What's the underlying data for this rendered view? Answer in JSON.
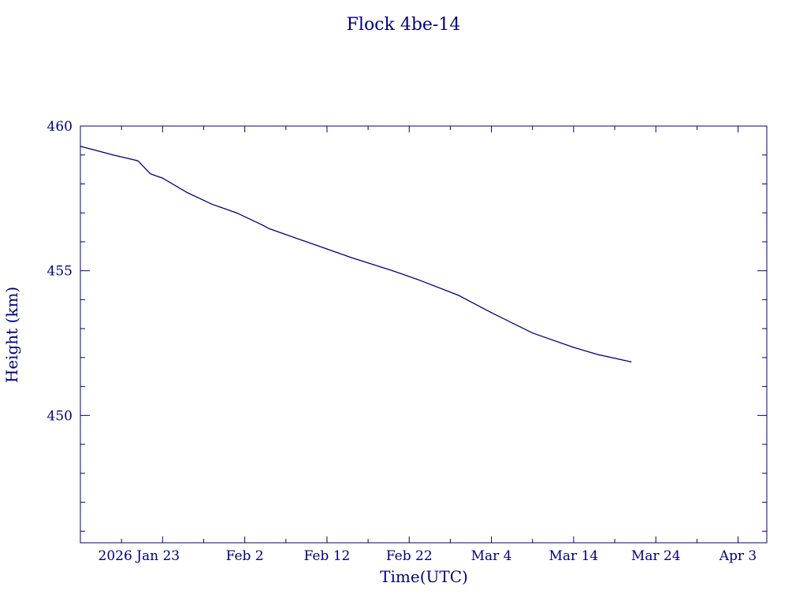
{
  "chart_data": {
    "type": "line",
    "title": "Flock 4be-14",
    "xlabel": "Time(UTC)",
    "ylabel": "Height (km)",
    "color": "#000080",
    "x_tick_labels": [
      "2026 Jan 23",
      "Feb  2",
      "Feb 12",
      "Feb 22",
      "Mar  4",
      "Mar 14",
      "Mar 24",
      "Apr  3"
    ],
    "y_tick_labels": [
      "450",
      "455",
      "460"
    ],
    "xlim": [
      "2026-01-13T00:00",
      "2026-04-06T12:00"
    ],
    "ylim": [
      445.6,
      460.0
    ],
    "y_ticks": [
      450,
      455,
      460
    ],
    "y_minor_step": 1,
    "series": [
      {
        "x": [
          "2026-01-13",
          "2026-01-17",
          "2026-01-20",
          "2026-01-21T12:00",
          "2026-01-22",
          "2026-01-23",
          "2026-01-26",
          "2026-01-29",
          "2026-01-30",
          "2026-02-01",
          "2026-02-04",
          "2026-02-05",
          "2026-02-10",
          "2026-02-15",
          "2026-02-20",
          "2026-02-23",
          "2026-02-28",
          "2026-03-04",
          "2026-03-09",
          "2026-03-14",
          "2026-03-17",
          "2026-03-21"
        ],
        "y": [
          459.3,
          459.0,
          458.8,
          458.35,
          458.3,
          458.2,
          457.7,
          457.3,
          457.2,
          457.0,
          456.6,
          456.45,
          455.95,
          455.45,
          455.0,
          454.7,
          454.15,
          453.55,
          452.85,
          452.35,
          452.1,
          451.85
        ]
      }
    ]
  }
}
